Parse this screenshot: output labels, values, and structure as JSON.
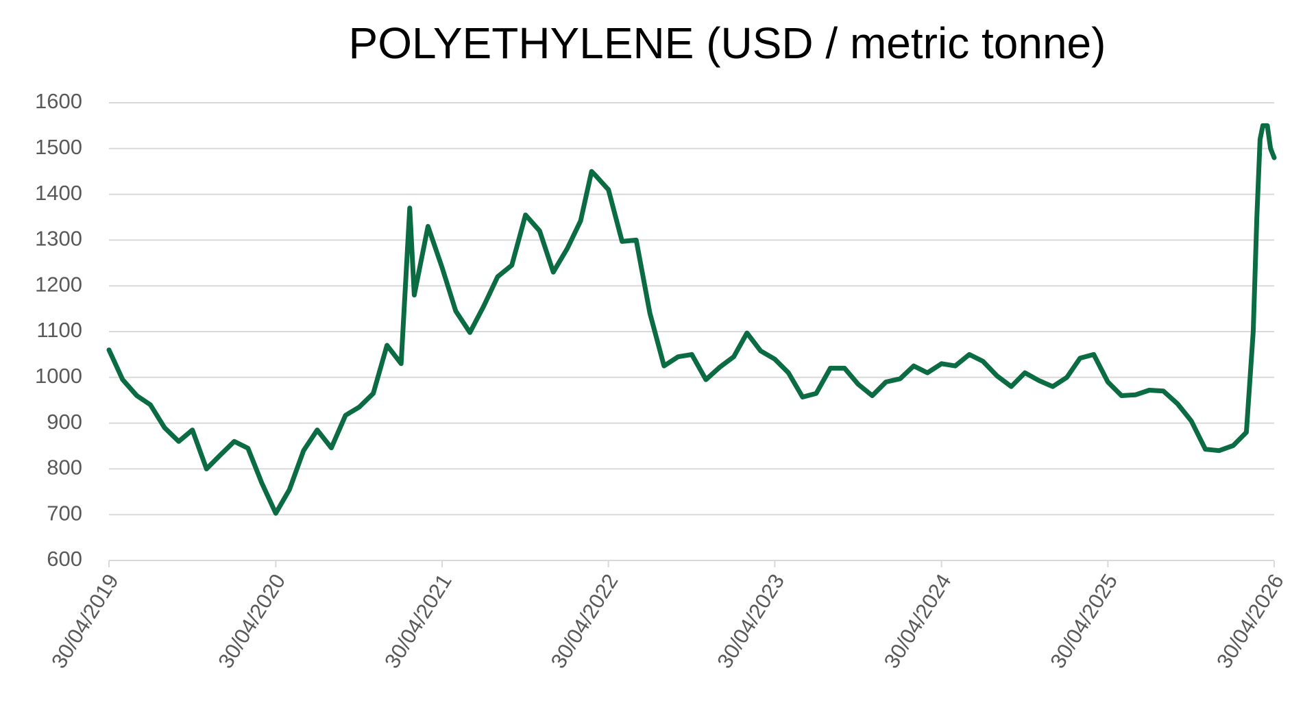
{
  "chart_data": {
    "type": "line",
    "title": "POLYETHYLENE (USD / metric tonne)",
    "color": "#0b6b43",
    "grid": true,
    "x": [
      "2019-04-30",
      "2019-05-30",
      "2019-06-30",
      "2019-07-30",
      "2019-08-30",
      "2019-09-30",
      "2019-10-30",
      "2019-11-30",
      "2019-12-30",
      "2020-01-30",
      "2020-02-29",
      "2020-03-30",
      "2020-04-30",
      "2020-05-30",
      "2020-06-30",
      "2020-07-30",
      "2020-08-30",
      "2020-09-30",
      "2020-10-30",
      "2020-11-30",
      "2020-12-30",
      "2021-01-30",
      "2021-02-18",
      "2021-02-28",
      "2021-03-30",
      "2021-04-30",
      "2021-05-30",
      "2021-06-30",
      "2021-07-30",
      "2021-08-30",
      "2021-09-30",
      "2021-10-30",
      "2021-11-30",
      "2021-12-30",
      "2022-01-30",
      "2022-02-28",
      "2022-03-24",
      "2022-03-30",
      "2022-04-30",
      "2022-05-30",
      "2022-06-30",
      "2022-07-30",
      "2022-08-30",
      "2022-09-30",
      "2022-10-30",
      "2022-11-30",
      "2022-12-30",
      "2023-01-30",
      "2023-02-28",
      "2023-03-30",
      "2023-04-30",
      "2023-05-30",
      "2023-06-30",
      "2023-07-30",
      "2023-08-30",
      "2023-09-30",
      "2023-10-30",
      "2023-11-30",
      "2023-12-30",
      "2024-01-30",
      "2024-02-29",
      "2024-03-30",
      "2024-04-30",
      "2024-05-30",
      "2024-06-30",
      "2024-07-30",
      "2024-08-30",
      "2024-09-30",
      "2024-10-30",
      "2024-11-30",
      "2024-12-30",
      "2025-01-30",
      "2025-02-28",
      "2025-03-30",
      "2025-04-30",
      "2025-05-30",
      "2025-06-30",
      "2025-07-30",
      "2025-08-30",
      "2025-09-30",
      "2025-10-30",
      "2025-11-30",
      "2025-12-30",
      "2026-01-30",
      "2026-02-28",
      "2026-03-15",
      "2026-03-23",
      "2026-03-30",
      "2026-04-05",
      "2026-04-15",
      "2026-04-22",
      "2026-04-30"
    ],
    "values": [
      1060,
      995,
      960,
      940,
      890,
      860,
      885,
      800,
      830,
      860,
      845,
      770,
      703,
      755,
      840,
      885,
      846,
      917,
      935,
      965,
      1070,
      1030,
      1370,
      1180,
      1330,
      1240,
      1145,
      1098,
      1155,
      1220,
      1245,
      1355,
      1320,
      1230,
      1282,
      1342,
      1450,
      1444,
      1410,
      1297,
      1300,
      1140,
      1025,
      1045,
      1050,
      995,
      1022,
      1045,
      1097,
      1058,
      1040,
      1010,
      957,
      965,
      1020,
      1020,
      985,
      960,
      990,
      997,
      1025,
      1010,
      1030,
      1025,
      1050,
      1035,
      1003,
      980,
      1010,
      993,
      980,
      1000,
      1042,
      1050,
      990,
      960,
      962,
      972,
      970,
      942,
      905,
      843,
      840,
      851,
      880,
      1100,
      1350,
      1520,
      1550,
      1550,
      1500,
      1480
    ],
    "xlim": [
      "2019-04-30",
      "2026-04-30"
    ],
    "xticks": [
      {
        "value": "2019-04-30",
        "label": "30/04/2019"
      },
      {
        "value": "2020-04-30",
        "label": "30/04/2020"
      },
      {
        "value": "2021-04-30",
        "label": "30/04/2021"
      },
      {
        "value": "2022-04-30",
        "label": "30/04/2022"
      },
      {
        "value": "2023-04-30",
        "label": "30/04/2023"
      },
      {
        "value": "2024-04-30",
        "label": "30/04/2024"
      },
      {
        "value": "2025-04-30",
        "label": "30/04/2025"
      },
      {
        "value": "2026-04-30",
        "label": "30/04/2026"
      }
    ],
    "ylim": [
      600,
      1600
    ],
    "yticks": [
      600,
      700,
      800,
      900,
      1000,
      1100,
      1200,
      1300,
      1400,
      1500,
      1600
    ]
  }
}
